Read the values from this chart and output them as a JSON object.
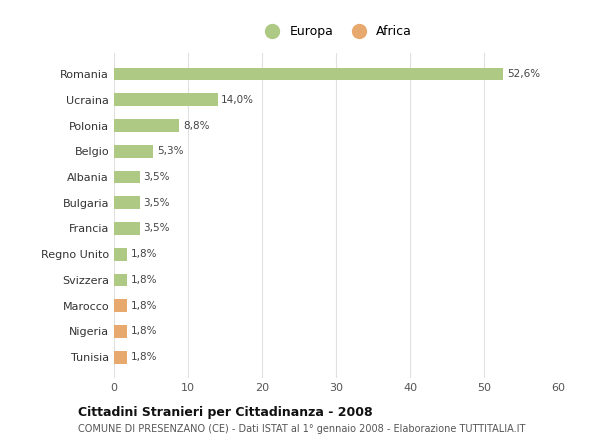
{
  "countries": [
    "Romania",
    "Ucraina",
    "Polonia",
    "Belgio",
    "Albania",
    "Bulgaria",
    "Francia",
    "Regno Unito",
    "Svizzera",
    "Marocco",
    "Nigeria",
    "Tunisia"
  ],
  "values": [
    52.6,
    14.0,
    8.8,
    5.3,
    3.5,
    3.5,
    3.5,
    1.8,
    1.8,
    1.8,
    1.8,
    1.8
  ],
  "labels": [
    "52,6%",
    "14,0%",
    "8,8%",
    "5,3%",
    "3,5%",
    "3,5%",
    "3,5%",
    "1,8%",
    "1,8%",
    "1,8%",
    "1,8%",
    "1,8%"
  ],
  "continents": [
    "Europa",
    "Europa",
    "Europa",
    "Europa",
    "Europa",
    "Europa",
    "Europa",
    "Europa",
    "Europa",
    "Africa",
    "Africa",
    "Africa"
  ],
  "color_europa": "#aec984",
  "color_africa": "#e8a96e",
  "background_color": "#ffffff",
  "grid_color": "#e0e0e0",
  "title": "Cittadini Stranieri per Cittadinanza - 2008",
  "subtitle": "COMUNE DI PRESENZANO (CE) - Dati ISTAT al 1° gennaio 2008 - Elaborazione TUTTITALIA.IT",
  "legend_europa": "Europa",
  "legend_africa": "Africa",
  "xlim": [
    0,
    60
  ],
  "xticks": [
    0,
    10,
    20,
    30,
    40,
    50,
    60
  ],
  "bar_height": 0.5
}
